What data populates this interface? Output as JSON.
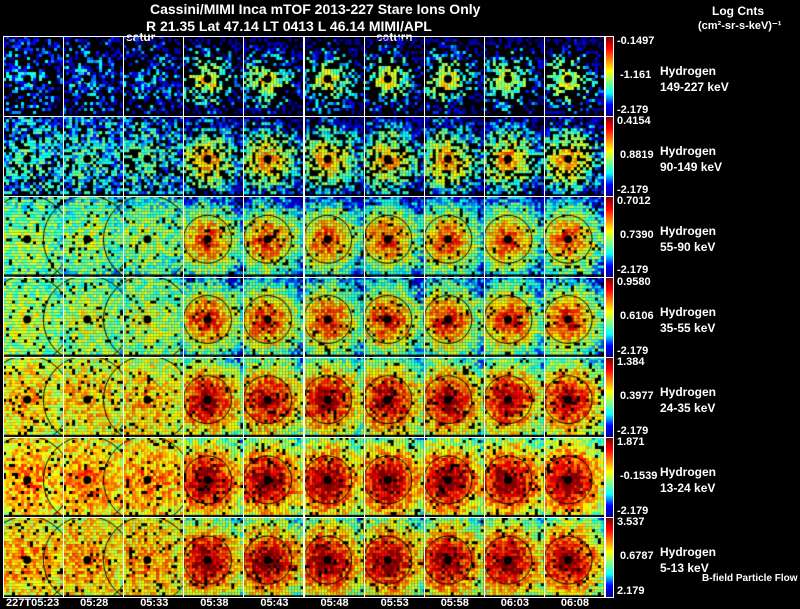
{
  "header": {
    "title": "Cassini/MIMI Inca mTOF  2013-227   Stare   Ions Only",
    "subtitle": "R        21.35 Lat 47.14 LT 0413 L          46.14  MIMI/APL",
    "units_line1": "Log Cnts",
    "units_line2": "(cm²-sr-s-keV)⁻¹",
    "saturn_labels": [
      "satur",
      "saturn"
    ]
  },
  "footer": {
    "legend": "B-field Particle Flow"
  },
  "chart_data": {
    "type": "heatmap",
    "title": "Cassini/MIMI Inca mTOF  2013-227   Stare   Ions Only",
    "columns": [
      "227T05:23",
      "05:28",
      "05:33",
      "05:38",
      "05:43",
      "05:48",
      "05:53",
      "05:58",
      "06:03",
      "06:08"
    ],
    "rows": [
      {
        "species": "Hydrogen",
        "energy": "149-227 keV",
        "cbar_max": "-0.1497",
        "cbar_mid": "-1.161",
        "cbar_min": "-2.179",
        "level": 0.15
      },
      {
        "species": "Hydrogen",
        "energy": "90-149 keV",
        "cbar_max": "0.4154",
        "cbar_mid": "0.8819",
        "cbar_min": "-2.179",
        "level": 0.3
      },
      {
        "species": "Hydrogen",
        "energy": "55-90 keV",
        "cbar_max": "0.7012",
        "cbar_mid": "0.7390",
        "cbar_min": "-2.179",
        "level": 0.45
      },
      {
        "species": "Hydrogen",
        "energy": "35-55 keV",
        "cbar_max": "0.9580",
        "cbar_mid": "0.6106",
        "cbar_min": "-2.179",
        "level": 0.5
      },
      {
        "species": "Hydrogen",
        "energy": "24-35 keV",
        "cbar_max": "1.384",
        "cbar_mid": "0.3977",
        "cbar_min": "-2.179",
        "level": 0.65
      },
      {
        "species": "Hydrogen",
        "energy": "13-24 keV",
        "cbar_max": "1.871",
        "cbar_mid": "-0.1539",
        "cbar_min": "-2.179",
        "level": 0.72
      },
      {
        "species": "Hydrogen",
        "energy": "5-13 keV",
        "cbar_max": "3.537",
        "cbar_mid": "0.6787",
        "cbar_min": "2.179",
        "level": 0.7
      }
    ],
    "colormap": [
      "#00008f",
      "#0000ff",
      "#00ffff",
      "#80ff80",
      "#ffff00",
      "#ff8000",
      "#ff0000",
      "#800000"
    ]
  }
}
